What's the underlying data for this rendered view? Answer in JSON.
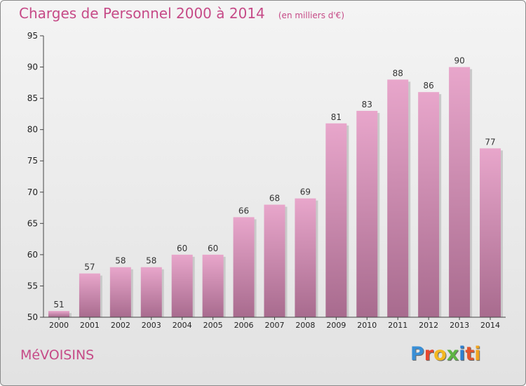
{
  "title": "Charges de Personnel 2000 à 2014",
  "unit_note": "(en milliers d'€)",
  "commune": "MéVOISINS",
  "brand": "Proxiti",
  "colors": {
    "title": "#c64a87",
    "bar_top": "#e8a6cb",
    "bar_bottom": "#a86b8e",
    "axis": "#444444"
  },
  "chart_data": {
    "type": "bar",
    "categories": [
      "2000",
      "2001",
      "2002",
      "2003",
      "2004",
      "2005",
      "2006",
      "2007",
      "2008",
      "2009",
      "2010",
      "2011",
      "2012",
      "2013",
      "2014"
    ],
    "values": [
      51,
      57,
      58,
      58,
      60,
      60,
      66,
      68,
      69,
      81,
      83,
      88,
      86,
      90,
      77
    ],
    "ylim": [
      50,
      95
    ],
    "yticks": [
      50,
      55,
      60,
      65,
      70,
      75,
      80,
      85,
      90,
      95
    ],
    "grid": false,
    "data_labels": true
  }
}
